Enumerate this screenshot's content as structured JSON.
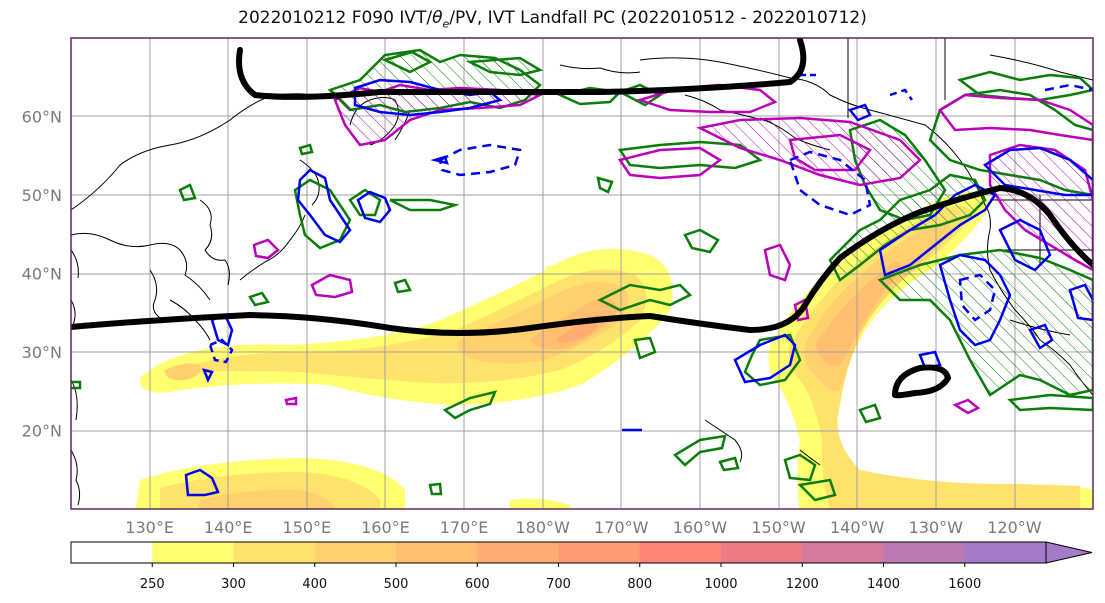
{
  "title_parts": {
    "prefix": "2022010212 F090 IVT/",
    "theta": "θ",
    "theta_sub": "e",
    "suffix": "/PV, IVT Landfall PC (2022010512 - 2022010712)"
  },
  "map": {
    "lat_labels": [
      "60°N",
      "50°N",
      "40°N",
      "30°N",
      "20°N"
    ],
    "lat_values": [
      60,
      50,
      40,
      30,
      20
    ],
    "lon_labels": [
      "130°E",
      "140°E",
      "150°E",
      "160°E",
      "170°E",
      "180°W",
      "170°W",
      "160°W",
      "150°W",
      "140°W",
      "130°W",
      "120°W"
    ],
    "lon_values": [
      130,
      140,
      150,
      160,
      170,
      180,
      190,
      200,
      210,
      220,
      230,
      240
    ],
    "lon_range": [
      120,
      250
    ],
    "lat_range": [
      10,
      70
    ],
    "grid": true
  },
  "colorbar": {
    "labels": [
      "250",
      "300",
      "400",
      "500",
      "600",
      "700",
      "800",
      "1000",
      "1200",
      "1400",
      "1600"
    ],
    "colors": [
      "#ffffff",
      "#ffff70",
      "#ffe26c",
      "#ffd06d",
      "#ffbe70",
      "#ffac73",
      "#ff9a73",
      "#ff8478",
      "#ee7a86",
      "#d47a9c",
      "#b97ab4",
      "#a57ac6"
    ],
    "extend": "max"
  },
  "colors": {
    "ivt_shading": "#ffd06d",
    "pc_contour": "#000000",
    "pv_contour": "#0a7d0a",
    "theta_contour": "#bb00bb",
    "blue_contour": "#0000ee"
  }
}
